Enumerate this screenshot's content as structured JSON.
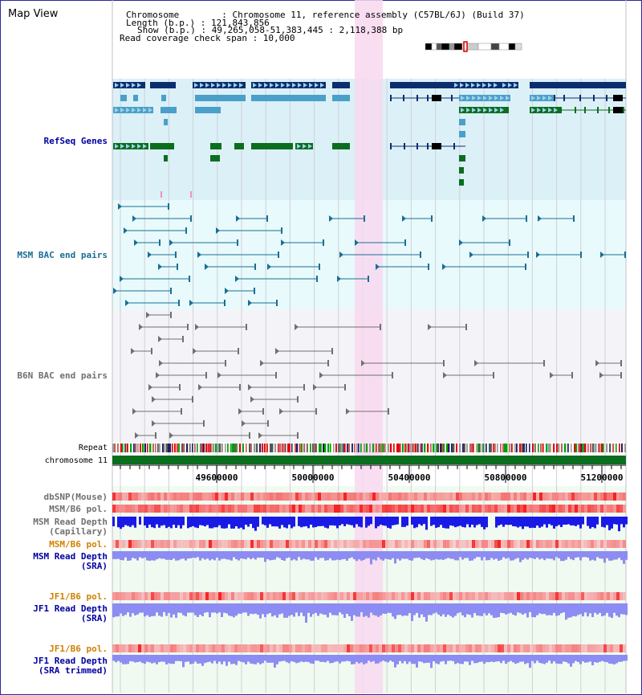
{
  "title": "Map View",
  "info": {
    "chromosome": "Chromosome        : Chromosome 11, reference assembly (C57BL/6J) (Build 37)",
    "length": "Length (b.p.) : 121,843,856",
    "show": "Show (b.p.) : 49,265,058-51,383,445 : 2,118,388 bp",
    "span": "Read coverage check span : 10,000"
  },
  "tracks": {
    "refseq": "RefSeq Genes",
    "msm_bac": "MSM BAC end pairs",
    "b6n_bac": "B6N BAC end pairs",
    "repeat": "Repeat",
    "chromosome": "chromosome 11",
    "dbsnp": "dbSNP(Mouse)",
    "msm_b6_pol": "MSM/B6 pol.",
    "msm_rd_cap_1": "MSM Read Depth",
    "msm_rd_cap_2": "(Capillary)",
    "msm_b6_pol2": "MSM/B6 pol.",
    "msm_rd_sra_1": "MSM Read Depth",
    "msm_rd_sra_2": "(SRA)",
    "jf1_b6_pol": "JF1/B6 pol.",
    "jf1_rd_sra_1": "JF1 Read Depth",
    "jf1_rd_sra_2": "(SRA)",
    "jf1_b6_pol2": "JF1/B6 pol.",
    "jf1_rd_tr_1": "JF1 Read Depth",
    "jf1_rd_tr_2": "(SRA trimmed)"
  },
  "axis": {
    "ticks": [
      "49600000",
      "50000000",
      "50400000",
      "50800000",
      "51200000"
    ]
  },
  "colors": {
    "refseq_bg": "#dcf0f8",
    "msm_bg": "#e8fafc",
    "b6n_bg": "#f4f4f8",
    "highlight": "#f8d8f0",
    "gene_dark": "#0a2e6e",
    "gene_light": "#4aa0c8",
    "gene_green": "#0a6e1e",
    "msm_line": "#1a6e94",
    "b6n_line": "#707070",
    "depth_blue": "#1a1ae6",
    "depth_light": "#8c8cf2",
    "pol_red": "#e02020",
    "pol_orange": "#d08000",
    "label_blue": "#0000a0",
    "label_teal": "#1a6e94"
  }
}
